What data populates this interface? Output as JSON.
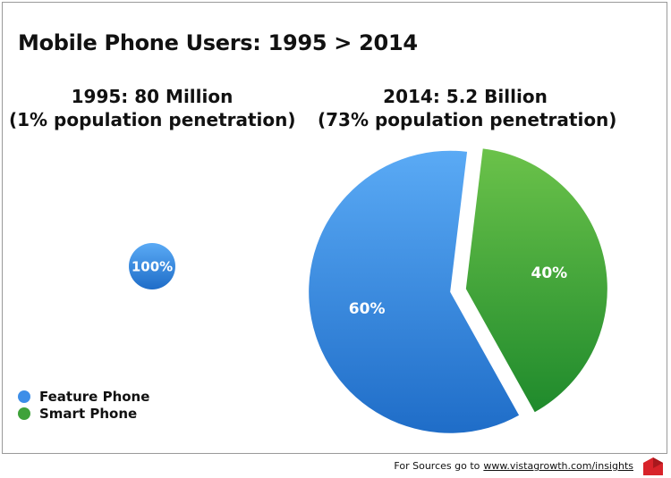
{
  "title": "Mobile Phone Users: 1995 > 2014",
  "chart_data": [
    {
      "type": "pie",
      "title": "1995: 80 Million",
      "subtitle": "(1% population penetration)",
      "categories": [
        "Feature Phone"
      ],
      "values": [
        100
      ],
      "labels": [
        "100%"
      ],
      "colors": [
        "#3d8ee8"
      ]
    },
    {
      "type": "pie",
      "title": "2014: 5.2 Billion",
      "subtitle": "(73% population penetration)",
      "categories": [
        "Feature Phone",
        "Smart Phone"
      ],
      "values": [
        60,
        40
      ],
      "labels": [
        "60%",
        "40%"
      ],
      "colors": [
        "#3d8ee8",
        "#3fa23a"
      ]
    }
  ],
  "legend": [
    {
      "label": "Feature Phone",
      "color": "#3d8ee8"
    },
    {
      "label": "Smart Phone",
      "color": "#3fa23a"
    }
  ],
  "footer": {
    "text": "For Sources go to",
    "link": "www.vistagrowth.com/insights"
  }
}
